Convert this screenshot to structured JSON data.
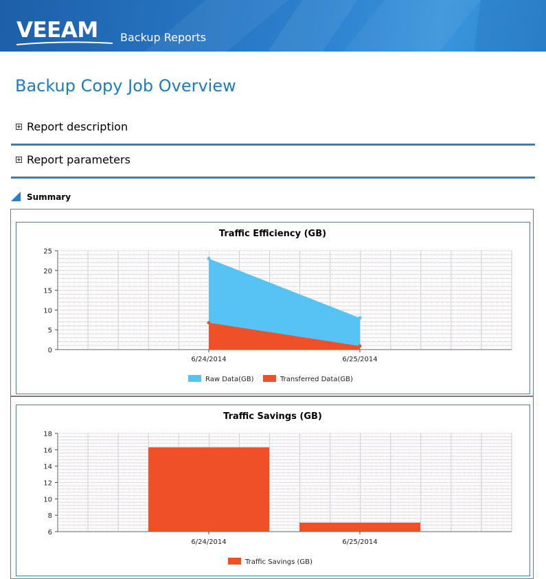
{
  "header": {
    "logo_text": "VEEAM",
    "app_name": "Backup Reports"
  },
  "page": {
    "title": "Backup Copy Job Overview"
  },
  "sections": [
    {
      "label": "Report description",
      "expanded": false
    },
    {
      "label": "Report parameters",
      "expanded": false
    }
  ],
  "summary": {
    "label": "Summary"
  },
  "colors": {
    "accent": "#2d83c8",
    "title": "#1f7bc0",
    "raw_data": "#55c4f4",
    "transferred": "#f05027"
  },
  "chart_data": [
    {
      "type": "area",
      "title": "Traffic Efficiency (GB)",
      "categories": [
        "6/24/2014",
        "6/25/2014"
      ],
      "ylim": [
        0,
        25
      ],
      "yticks": [
        0,
        5,
        10,
        15,
        20,
        25
      ],
      "grid": true,
      "legend_position": "bottom",
      "series": [
        {
          "name": "Raw Data(GB)",
          "values": [
            23,
            8
          ],
          "color": "#55c4f4"
        },
        {
          "name": "Transferred Data(GB)",
          "values": [
            6.8,
            0.9
          ],
          "color": "#f05027"
        }
      ]
    },
    {
      "type": "bar",
      "title": "Traffic Savings (GB)",
      "categories": [
        "6/24/2014",
        "6/25/2014"
      ],
      "ylim": [
        6,
        18
      ],
      "yticks": [
        6,
        8,
        10,
        12,
        14,
        16,
        18
      ],
      "grid": true,
      "legend_position": "bottom",
      "series": [
        {
          "name": "Traffic Savings (GB)",
          "values": [
            16.3,
            7.1
          ],
          "color": "#f05027"
        }
      ]
    }
  ]
}
